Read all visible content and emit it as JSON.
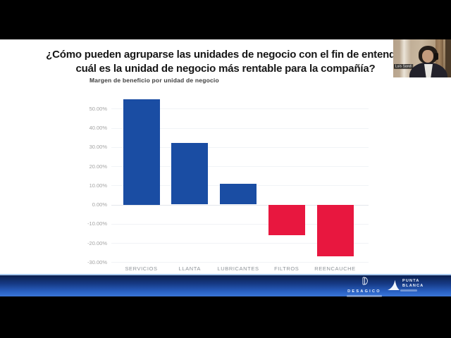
{
  "slide": {
    "title_line1": "¿Cómo pueden agruparse las unidades de negocio con el fin de entender",
    "title_line2": "cuál es la unidad de negocio más rentable para la compañía?"
  },
  "chart_data": {
    "type": "bar",
    "title": "Margen de beneficio por unidad de negocio",
    "categories": [
      "SERVICIOS",
      "LLANTA",
      "LUBRICANTES",
      "FILTROS",
      "REENCAUCHE"
    ],
    "values": [
      55,
      32,
      11,
      -16,
      -27
    ],
    "unit": "percent",
    "y_ticks": [
      "50.00%",
      "40.00%",
      "30.00%",
      "20.00%",
      "10.00%",
      "0.00%",
      "-10.00%",
      "-20.00%",
      "-30.00%"
    ],
    "ylim": [
      -30,
      57
    ],
    "grid": true,
    "legend": "none",
    "positive_color": "#1a4da3",
    "negative_color": "#e8173f"
  },
  "webcam": {
    "participant_name": "Luis Sandí"
  },
  "footer": {
    "logo1": {
      "monogram": "D",
      "name": "DESAGICO"
    },
    "logo2": {
      "line1": "PUNTA",
      "line2": "BLANCA"
    }
  }
}
